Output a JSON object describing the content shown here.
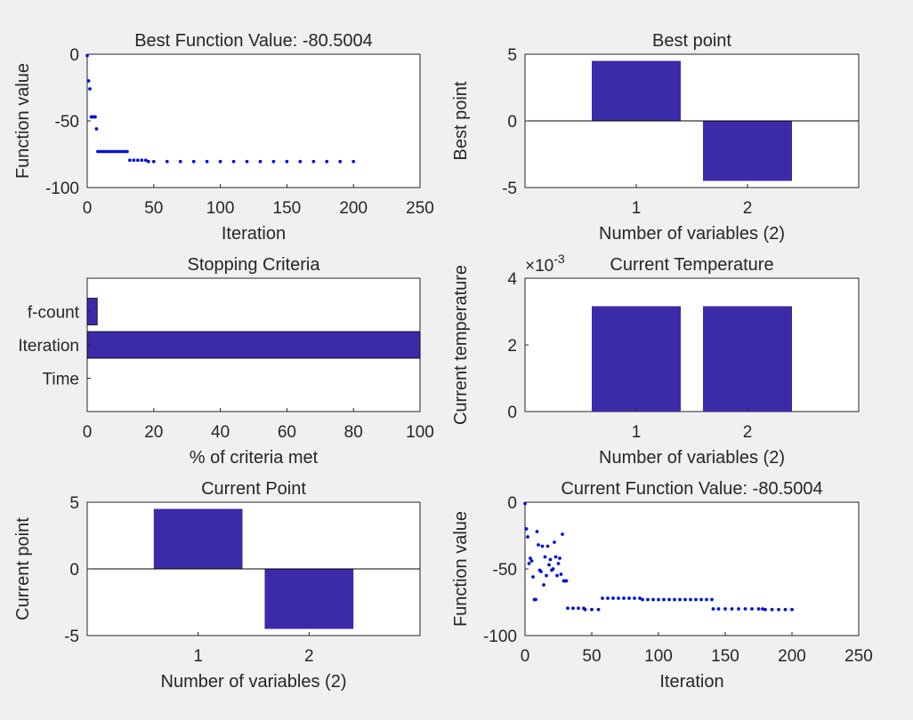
{
  "figure": {
    "bar_color": "#3b2ba8",
    "point_color": "#0010d9"
  },
  "chart_data": [
    {
      "id": "best-fval",
      "type": "scatter",
      "title": "Best Function Value: -80.5004",
      "xlabel": "Iteration",
      "ylabel": "Function value",
      "xlim": [
        0,
        250
      ],
      "ylim": [
        -100,
        0
      ],
      "xticks": [
        0,
        50,
        100,
        150,
        200,
        250
      ],
      "yticks": [
        -100,
        -50,
        0
      ],
      "points": [
        [
          0,
          -1
        ],
        [
          1,
          -20
        ],
        [
          2,
          -26
        ],
        [
          3,
          -47
        ],
        [
          4,
          -47
        ],
        [
          5,
          -47
        ],
        [
          6,
          -47
        ],
        [
          7,
          -56
        ],
        [
          8,
          -73
        ],
        [
          10,
          -73
        ],
        [
          12,
          -73
        ],
        [
          14,
          -73
        ],
        [
          16,
          -73
        ],
        [
          18,
          -73
        ],
        [
          20,
          -73
        ],
        [
          22,
          -73
        ],
        [
          24,
          -73
        ],
        [
          26,
          -73
        ],
        [
          28,
          -73
        ],
        [
          30,
          -73
        ],
        [
          32,
          -79.5
        ],
        [
          35,
          -79.5
        ],
        [
          38,
          -79.5
        ],
        [
          41,
          -79.5
        ],
        [
          44,
          -79.5
        ],
        [
          46,
          -80.5
        ],
        [
          50,
          -80.5
        ],
        [
          60,
          -80.5
        ],
        [
          70,
          -80.5
        ],
        [
          80,
          -80.5
        ],
        [
          90,
          -80.5
        ],
        [
          100,
          -80.5
        ],
        [
          110,
          -80.5
        ],
        [
          120,
          -80.5
        ],
        [
          130,
          -80.5
        ],
        [
          140,
          -80.5
        ],
        [
          150,
          -80.5
        ],
        [
          160,
          -80.5
        ],
        [
          170,
          -80.5
        ],
        [
          180,
          -80.5
        ],
        [
          190,
          -80.5
        ],
        [
          200,
          -80.5
        ]
      ]
    },
    {
      "id": "best-point",
      "type": "bar",
      "title": "Best point",
      "xlabel": "Number of variables (2)",
      "ylabel": "Best point",
      "categories": [
        "1",
        "2"
      ],
      "values": [
        4.5,
        -4.5
      ],
      "xlim": [
        0,
        3
      ],
      "ylim": [
        -5,
        5
      ],
      "yticks": [
        -5,
        0,
        5
      ]
    },
    {
      "id": "stopping",
      "type": "bar",
      "orientation": "horizontal",
      "title": "Stopping Criteria",
      "xlabel": "% of criteria met",
      "ylabel": "",
      "categories": [
        "f-count",
        "Iteration",
        "Time"
      ],
      "values": [
        3,
        100,
        0
      ],
      "xlim": [
        0,
        100
      ],
      "xticks": [
        0,
        20,
        40,
        60,
        80,
        100
      ]
    },
    {
      "id": "current-temp",
      "type": "bar",
      "title": "Current Temperature",
      "xlabel": "Number of variables (2)",
      "ylabel": "Current temperature",
      "categories": [
        "1",
        "2"
      ],
      "values": [
        0.00316,
        0.00316
      ],
      "xlim": [
        0,
        3
      ],
      "ylim": [
        0,
        0.004
      ],
      "yticks": [
        0,
        0.002,
        0.004
      ],
      "ytick_labels": [
        "0",
        "2",
        "4"
      ],
      "exponent_label": "×10",
      "exponent": "-3"
    },
    {
      "id": "current-point",
      "type": "bar",
      "title": "Current Point",
      "xlabel": "Number of variables (2)",
      "ylabel": "Current point",
      "categories": [
        "1",
        "2"
      ],
      "values": [
        4.5,
        -4.5
      ],
      "xlim": [
        0,
        3
      ],
      "ylim": [
        -5,
        5
      ],
      "yticks": [
        -5,
        0,
        5
      ]
    },
    {
      "id": "current-fval",
      "type": "scatter",
      "title": "Current Function Value: -80.5004",
      "xlabel": "Iteration",
      "ylabel": "Function value",
      "xlim": [
        0,
        250
      ],
      "ylim": [
        -100,
        0
      ],
      "xticks": [
        0,
        50,
        100,
        150,
        200,
        250
      ],
      "yticks": [
        -100,
        -50,
        0
      ],
      "points": [
        [
          0,
          -1
        ],
        [
          1,
          -20
        ],
        [
          2,
          -26
        ],
        [
          3,
          -46
        ],
        [
          4,
          -42
        ],
        [
          5,
          -44
        ],
        [
          6,
          -56
        ],
        [
          7,
          -73
        ],
        [
          8,
          -73
        ],
        [
          9,
          -22
        ],
        [
          10,
          -32
        ],
        [
          11,
          -51
        ],
        [
          12,
          -52
        ],
        [
          13,
          -33
        ],
        [
          14,
          -62
        ],
        [
          15,
          -41
        ],
        [
          16,
          -55
        ],
        [
          17,
          -33
        ],
        [
          18,
          -47
        ],
        [
          19,
          -43
        ],
        [
          20,
          -51
        ],
        [
          21,
          -50
        ],
        [
          22,
          -30
        ],
        [
          23,
          -41
        ],
        [
          24,
          -55
        ],
        [
          25,
          -46
        ],
        [
          26,
          -42
        ],
        [
          27,
          -54
        ],
        [
          28,
          -24
        ],
        [
          29,
          -59
        ],
        [
          30,
          -59
        ],
        [
          31,
          -59
        ],
        [
          32,
          -79.5
        ],
        [
          36,
          -79.5
        ],
        [
          40,
          -79.5
        ],
        [
          44,
          -79.5
        ],
        [
          45,
          -80.5
        ],
        [
          50,
          -80.5
        ],
        [
          55,
          -80.5
        ],
        [
          58,
          -72
        ],
        [
          62,
          -72
        ],
        [
          66,
          -72
        ],
        [
          70,
          -72
        ],
        [
          74,
          -72
        ],
        [
          78,
          -72
        ],
        [
          82,
          -72
        ],
        [
          86,
          -72
        ],
        [
          88,
          -73
        ],
        [
          92,
          -73
        ],
        [
          96,
          -73
        ],
        [
          100,
          -73
        ],
        [
          104,
          -73
        ],
        [
          108,
          -73
        ],
        [
          112,
          -73
        ],
        [
          116,
          -73
        ],
        [
          120,
          -73
        ],
        [
          124,
          -73
        ],
        [
          128,
          -73
        ],
        [
          132,
          -73
        ],
        [
          136,
          -73
        ],
        [
          140,
          -73
        ],
        [
          141,
          -80
        ],
        [
          145,
          -80
        ],
        [
          150,
          -80
        ],
        [
          155,
          -80
        ],
        [
          160,
          -80
        ],
        [
          165,
          -80
        ],
        [
          170,
          -80
        ],
        [
          175,
          -80
        ],
        [
          178,
          -80
        ],
        [
          180,
          -80.5
        ],
        [
          185,
          -80.5
        ],
        [
          190,
          -80.5
        ],
        [
          195,
          -80.5
        ],
        [
          200,
          -80.5
        ]
      ]
    }
  ]
}
